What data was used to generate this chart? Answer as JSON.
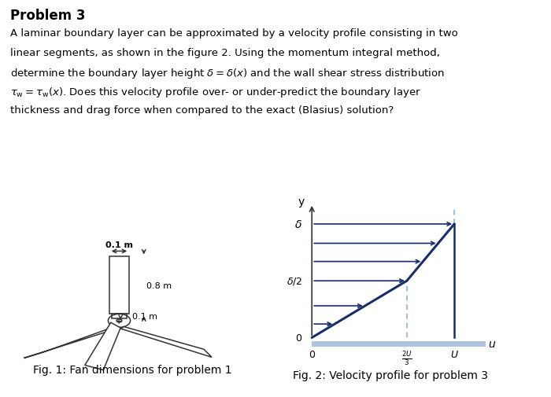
{
  "title": "Problem 3",
  "bg_color": "#ffffff",
  "text_color": "#000000",
  "profile_line_color": "#1a2d6b",
  "dashed_line_color": "#8ab4d4",
  "arrow_color": "#1a2d6b",
  "wall_color": "#b0c4de",
  "fan_edge_color": "#333333",
  "fig1_caption": "Fig. 1: Fan dimensions for problem 1",
  "fig2_caption": "Fig. 2: Velocity profile for problem 3",
  "title_fontsize": 12,
  "body_fontsize": 9.5,
  "caption_fontsize": 10
}
